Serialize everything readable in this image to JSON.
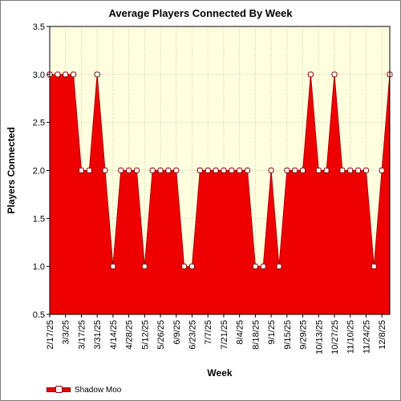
{
  "chart_data": {
    "type": "area",
    "title": "Average Players Connected By Week",
    "xlabel": "Week",
    "ylabel": "Players Connected",
    "ylim": [
      0.5,
      3.5
    ],
    "yticks": [
      "0.5",
      "1.0",
      "1.5",
      "2.0",
      "2.5",
      "3.0",
      "3.5"
    ],
    "x": [
      "2/17/25",
      "2/24/25",
      "3/3/25",
      "3/10/25",
      "3/17/25",
      "3/24/25",
      "3/31/25",
      "4/7/25",
      "4/14/25",
      "4/21/25",
      "4/28/25",
      "5/5/25",
      "5/12/25",
      "5/19/25",
      "5/26/25",
      "6/2/25",
      "6/9/25",
      "6/16/25",
      "6/23/25",
      "6/30/25",
      "7/7/25",
      "7/14/25",
      "7/21/25",
      "7/28/25",
      "8/4/25",
      "8/11/25",
      "8/18/25",
      "8/25/25",
      "9/1/25",
      "9/8/25",
      "9/15/25",
      "9/22/25",
      "9/29/25",
      "10/6/25",
      "10/13/25",
      "10/20/25",
      "10/27/25",
      "11/3/25",
      "11/10/25",
      "11/17/25",
      "11/24/25",
      "12/1/25",
      "12/8/25",
      "12/15/25"
    ],
    "tick_labels": [
      "2/17/25",
      "3/3/25",
      "3/17/25",
      "3/31/25",
      "4/14/25",
      "4/28/25",
      "5/12/25",
      "5/26/25",
      "6/9/25",
      "6/23/25",
      "7/7/25",
      "7/21/25",
      "8/4/25",
      "8/18/25",
      "9/1/25",
      "9/15/25",
      "9/29/25",
      "10/13/25",
      "10/27/25",
      "11/10/25",
      "11/24/25",
      "12/8/25"
    ],
    "series": [
      {
        "name": "Shadow Moo",
        "values": [
          3,
          3,
          3,
          3,
          2,
          2,
          3,
          2,
          1,
          2,
          2,
          2,
          1,
          2,
          2,
          2,
          2,
          1,
          1,
          2,
          2,
          2,
          2,
          2,
          2,
          2,
          1,
          1,
          2,
          1,
          2,
          2,
          2,
          3,
          2,
          2,
          3,
          2,
          2,
          2,
          2,
          1,
          2,
          3
        ]
      }
    ],
    "grid": true,
    "legend_position": "bottom-left",
    "colors": {
      "fill": "#ee0000",
      "plot_background": "#ffffe0",
      "grid": "#c8c8a0",
      "marker_fill": "#ffffff",
      "marker_stroke": "#880000"
    }
  }
}
